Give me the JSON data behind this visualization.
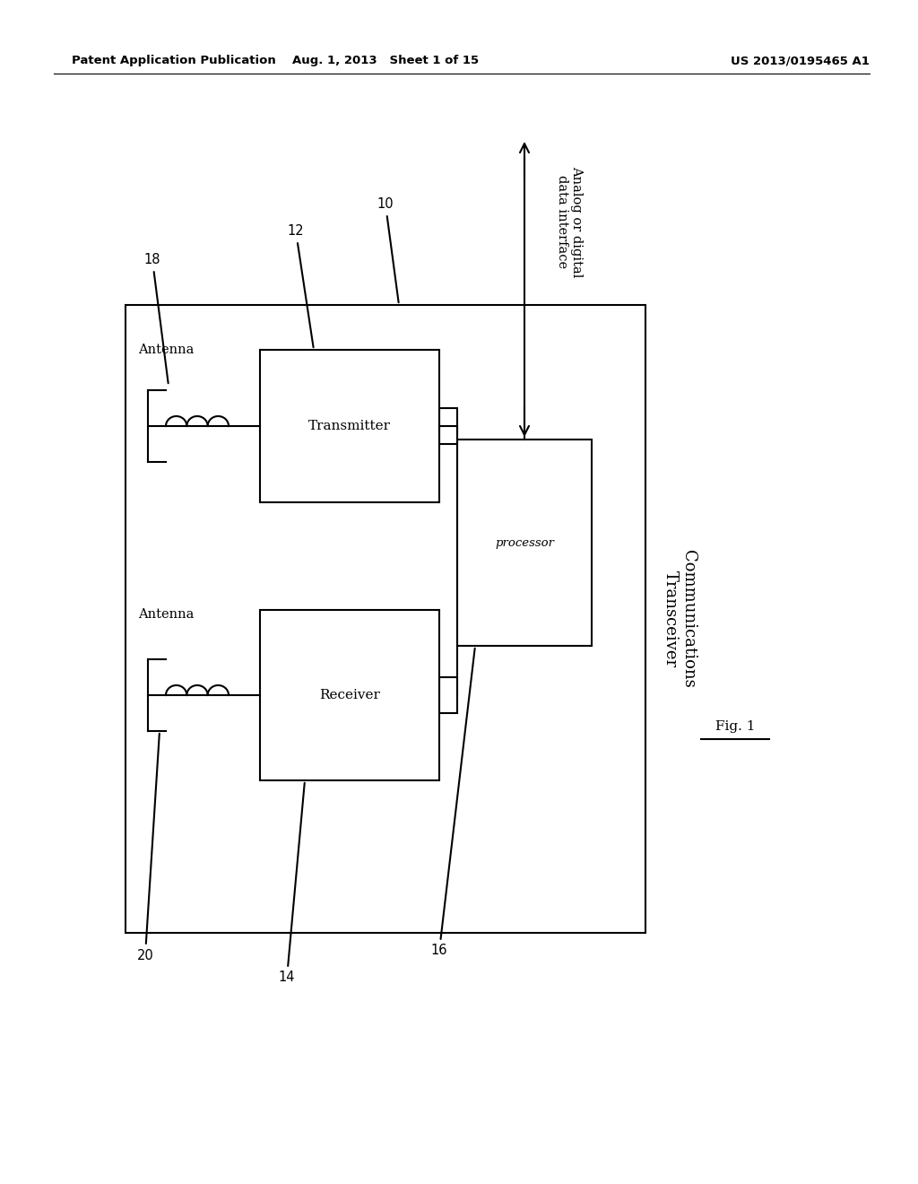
{
  "bg_color": "#ffffff",
  "header_left": "Patent Application Publication",
  "header_center": "Aug. 1, 2013   Sheet 1 of 15",
  "header_right": "US 2013/0195465 A1",
  "fig_label": "Fig. 1",
  "line_color": "#000000",
  "lw": 1.5
}
